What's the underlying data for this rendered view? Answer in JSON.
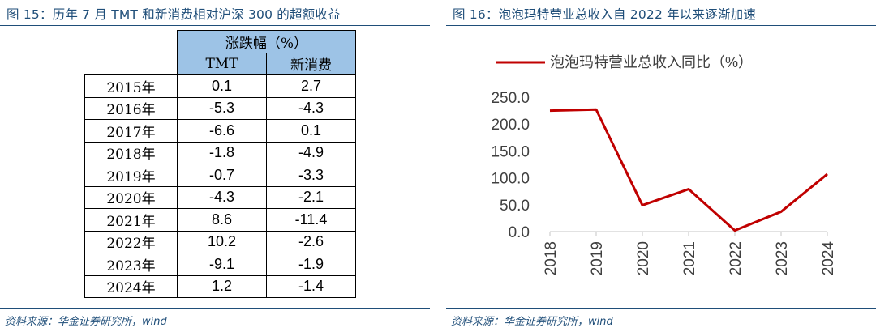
{
  "left": {
    "figure_title": "图 15：历年 7 月 TMT 和新消费相对沪深 300 的超额收益",
    "table": {
      "group_header": "涨跌幅（%）",
      "col_headers": [
        "TMT",
        "新消费"
      ],
      "rows": [
        {
          "year": "2015年",
          "tmt": "0.1",
          "consumer": "2.7"
        },
        {
          "year": "2016年",
          "tmt": "-5.3",
          "consumer": "-4.3"
        },
        {
          "year": "2017年",
          "tmt": "-6.6",
          "consumer": "0.1"
        },
        {
          "year": "2018年",
          "tmt": "-1.8",
          "consumer": "-4.9"
        },
        {
          "year": "2019年",
          "tmt": "-0.7",
          "consumer": "-3.3"
        },
        {
          "year": "2020年",
          "tmt": "-4.3",
          "consumer": "-2.1"
        },
        {
          "year": "2021年",
          "tmt": "8.6",
          "consumer": "-11.4"
        },
        {
          "year": "2022年",
          "tmt": "10.2",
          "consumer": "-2.6"
        },
        {
          "year": "2023年",
          "tmt": "-9.1",
          "consumer": "-1.9"
        },
        {
          "year": "2024年",
          "tmt": "1.2",
          "consumer": "-1.4"
        }
      ]
    },
    "source": "资料来源：华金证券研究所，wind"
  },
  "right": {
    "figure_title": "图 16：泡泡玛特营业总收入自 2022 年以来逐渐加速",
    "source": "资料来源：华金证券研究所，wind"
  },
  "chart_data": {
    "type": "line",
    "title": "",
    "xlabel": "",
    "ylabel": "",
    "x": [
      "2018",
      "2019",
      "2020",
      "2021",
      "2022",
      "2023",
      "2024"
    ],
    "series": [
      {
        "name": "泡泡玛特营业总收入同比（%）",
        "color": "#c00000",
        "values": [
          225.0,
          227.0,
          49.0,
          79.0,
          2.0,
          37.0,
          107.0
        ]
      }
    ],
    "ylim": [
      0,
      250
    ],
    "yticks": [
      0,
      50,
      100,
      150,
      200,
      250
    ],
    "ytick_labels": [
      "0.0",
      "50.0",
      "100.0",
      "150.0",
      "200.0",
      "250.0"
    ],
    "grid": false,
    "legend": "top"
  }
}
